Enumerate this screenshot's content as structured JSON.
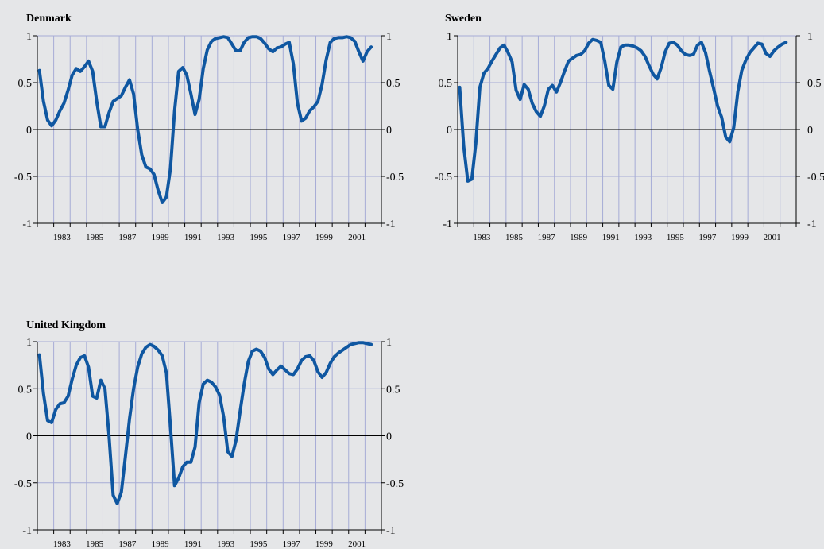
{
  "colors": {
    "background": "#e5e6e8",
    "line": "#0f57a1",
    "grid": "#a6acd6",
    "axis": "#000000"
  },
  "chart_data": [
    {
      "type": "line",
      "title": "Denmark",
      "ylim": [
        -1,
        1
      ],
      "yticks": [
        "1",
        "0.5",
        "0",
        "-0.5",
        "-1"
      ],
      "year_labels": [
        "1983",
        "1985",
        "1987",
        "1989",
        "1991",
        "1993",
        "1995",
        "1997",
        "1999",
        "2001"
      ],
      "grid": true,
      "x_start": 1982.0,
      "x_end": 2003.0,
      "x_step": 0.25,
      "values": [
        0.63,
        0.3,
        0.1,
        0.04,
        0.1,
        0.2,
        0.28,
        0.42,
        0.58,
        0.65,
        0.62,
        0.67,
        0.73,
        0.62,
        0.3,
        0.03,
        0.03,
        0.18,
        0.3,
        0.33,
        0.36,
        0.45,
        0.53,
        0.38,
        0.0,
        -0.27,
        -0.4,
        -0.42,
        -0.48,
        -0.65,
        -0.78,
        -0.72,
        -0.42,
        0.2,
        0.62,
        0.66,
        0.58,
        0.38,
        0.16,
        0.32,
        0.65,
        0.85,
        0.94,
        0.97,
        0.98,
        0.99,
        0.98,
        0.91,
        0.84,
        0.84,
        0.93,
        0.98,
        0.99,
        0.99,
        0.97,
        0.92,
        0.86,
        0.83,
        0.87,
        0.88,
        0.91,
        0.93,
        0.7,
        0.28,
        0.09,
        0.12,
        0.2,
        0.24,
        0.3,
        0.48,
        0.74,
        0.93,
        0.97,
        0.98,
        0.98,
        0.99,
        0.98,
        0.94,
        0.83,
        0.73,
        0.83,
        0.88
      ]
    },
    {
      "type": "line",
      "title": "Sweden",
      "ylim": [
        -1,
        1
      ],
      "yticks": [
        "1",
        "0.5",
        "0",
        "-0.5",
        "-1"
      ],
      "year_labels": [
        "1983",
        "1985",
        "1987",
        "1989",
        "1991",
        "1993",
        "1995",
        "1997",
        "1999",
        "2001"
      ],
      "grid": true,
      "x_start": 1982.0,
      "x_end": 2003.0,
      "x_step": 0.25,
      "values": [
        0.45,
        -0.18,
        -0.55,
        -0.53,
        -0.15,
        0.45,
        0.6,
        0.65,
        0.73,
        0.8,
        0.87,
        0.9,
        0.82,
        0.72,
        0.42,
        0.32,
        0.48,
        0.43,
        0.28,
        0.19,
        0.14,
        0.25,
        0.43,
        0.47,
        0.4,
        0.5,
        0.62,
        0.73,
        0.76,
        0.79,
        0.8,
        0.84,
        0.92,
        0.96,
        0.95,
        0.93,
        0.73,
        0.47,
        0.43,
        0.72,
        0.88,
        0.9,
        0.9,
        0.89,
        0.87,
        0.84,
        0.78,
        0.68,
        0.59,
        0.54,
        0.66,
        0.83,
        0.92,
        0.93,
        0.9,
        0.84,
        0.8,
        0.79,
        0.8,
        0.9,
        0.93,
        0.82,
        0.62,
        0.44,
        0.25,
        0.13,
        -0.08,
        -0.13,
        0.02,
        0.4,
        0.63,
        0.74,
        0.82,
        0.87,
        0.92,
        0.91,
        0.81,
        0.78,
        0.84,
        0.88,
        0.91,
        0.93
      ]
    },
    {
      "type": "line",
      "title": "United Kingdom",
      "ylim": [
        -1,
        1
      ],
      "yticks": [
        "1",
        "0.5",
        "0",
        "-0.5",
        "-1"
      ],
      "year_labels": [
        "1983",
        "1985",
        "1987",
        "1989",
        "1991",
        "1993",
        "1995",
        "1997",
        "1999",
        "2001"
      ],
      "grid": true,
      "x_start": 1982.0,
      "x_end": 2003.0,
      "x_step": 0.25,
      "values": [
        0.86,
        0.45,
        0.16,
        0.14,
        0.28,
        0.34,
        0.35,
        0.42,
        0.6,
        0.75,
        0.83,
        0.85,
        0.73,
        0.42,
        0.4,
        0.59,
        0.5,
        0.0,
        -0.63,
        -0.72,
        -0.6,
        -0.22,
        0.18,
        0.5,
        0.73,
        0.87,
        0.94,
        0.97,
        0.95,
        0.91,
        0.85,
        0.67,
        0.1,
        -0.53,
        -0.45,
        -0.33,
        -0.28,
        -0.28,
        -0.12,
        0.35,
        0.55,
        0.59,
        0.57,
        0.52,
        0.43,
        0.2,
        -0.17,
        -0.22,
        -0.05,
        0.26,
        0.55,
        0.79,
        0.9,
        0.92,
        0.9,
        0.83,
        0.71,
        0.65,
        0.7,
        0.74,
        0.7,
        0.66,
        0.65,
        0.71,
        0.8,
        0.84,
        0.85,
        0.8,
        0.68,
        0.62,
        0.67,
        0.77,
        0.84,
        0.88,
        0.91,
        0.94,
        0.97,
        0.98,
        0.99,
        0.99,
        0.98,
        0.97
      ]
    }
  ]
}
